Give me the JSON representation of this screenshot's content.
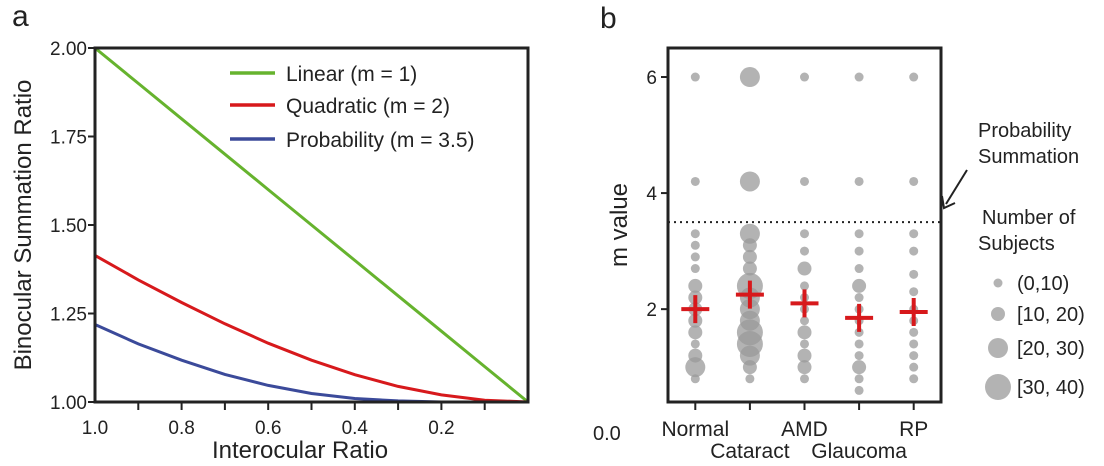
{
  "chart_data": [
    {
      "panel": "a",
      "type": "line",
      "xlabel": "Interocular Ratio",
      "ylabel": "Binocular Summation Ratio",
      "xlim": [
        1.0,
        0.0
      ],
      "ylim": [
        1.0,
        2.0
      ],
      "xticks": [
        1.0,
        0.8,
        0.6,
        0.4,
        0.2
      ],
      "xtick_labels": [
        "1.0",
        "0.8",
        "0.6",
        "0.4",
        "0.2"
      ],
      "yticks": [
        1.0,
        1.25,
        1.5,
        1.75,
        2.0
      ],
      "ytick_labels": [
        "1.00",
        "1.25",
        "1.50",
        "1.75",
        "2.00"
      ],
      "legend_position": "top-right",
      "series": [
        {
          "name": "Linear (m = 1)",
          "color": "#66b32e",
          "x": [
            1.0,
            0.9,
            0.8,
            0.7,
            0.6,
            0.5,
            0.4,
            0.3,
            0.2,
            0.1,
            0.0
          ],
          "y": [
            2.0,
            1.9,
            1.8,
            1.7,
            1.6,
            1.5,
            1.4,
            1.3,
            1.2,
            1.1,
            1.0
          ]
        },
        {
          "name": "Quadratic (m = 2)",
          "color": "#d7191c",
          "x": [
            1.0,
            0.9,
            0.8,
            0.7,
            0.6,
            0.5,
            0.4,
            0.3,
            0.2,
            0.1,
            0.0
          ],
          "y": [
            1.414,
            1.345,
            1.281,
            1.221,
            1.166,
            1.118,
            1.077,
            1.044,
            1.02,
            1.005,
            1.0
          ]
        },
        {
          "name": "Probability (m = 3.5)",
          "color": "#3b4a9a",
          "x": [
            1.0,
            0.9,
            0.8,
            0.7,
            0.6,
            0.5,
            0.4,
            0.3,
            0.2,
            0.1,
            0.0
          ],
          "y": [
            1.219,
            1.164,
            1.118,
            1.078,
            1.047,
            1.024,
            1.01,
            1.003,
            1.0,
            1.0,
            1.0
          ]
        }
      ]
    },
    {
      "panel": "b",
      "type": "scatter",
      "ylabel": "m value",
      "ylim": [
        0.4,
        6.5
      ],
      "yticks": [
        2,
        4,
        6
      ],
      "ytick_labels": [
        "2",
        "4",
        "6"
      ],
      "corner_label": "0.0",
      "categories": [
        "Normal",
        "Cataract",
        "AMD",
        "Glaucoma",
        "RP"
      ],
      "reference_line": {
        "y": 3.5,
        "style": "dotted",
        "label": "Probability Summation"
      },
      "mean_color": "#d7191c",
      "point_color": "#999999",
      "means": [
        2.0,
        2.25,
        2.1,
        1.85,
        1.95
      ],
      "size_legend": {
        "title": "Number of Subjects",
        "bins": [
          "(0,10)",
          "[10, 20)",
          "[20, 30)",
          "[30, 40)"
        ]
      },
      "points": [
        {
          "category": "Normal",
          "y": 6.0,
          "count_bin": 0
        },
        {
          "category": "Normal",
          "y": 4.2,
          "count_bin": 0
        },
        {
          "category": "Normal",
          "y": 3.3,
          "count_bin": 0
        },
        {
          "category": "Normal",
          "y": 3.1,
          "count_bin": 0
        },
        {
          "category": "Normal",
          "y": 2.9,
          "count_bin": 0
        },
        {
          "category": "Normal",
          "y": 2.7,
          "count_bin": 0
        },
        {
          "category": "Normal",
          "y": 2.4,
          "count_bin": 1
        },
        {
          "category": "Normal",
          "y": 2.2,
          "count_bin": 1
        },
        {
          "category": "Normal",
          "y": 2.0,
          "count_bin": 1
        },
        {
          "category": "Normal",
          "y": 1.8,
          "count_bin": 1
        },
        {
          "category": "Normal",
          "y": 1.6,
          "count_bin": 1
        },
        {
          "category": "Normal",
          "y": 1.4,
          "count_bin": 0
        },
        {
          "category": "Normal",
          "y": 1.2,
          "count_bin": 1
        },
        {
          "category": "Normal",
          "y": 1.0,
          "count_bin": 2
        },
        {
          "category": "Normal",
          "y": 0.8,
          "count_bin": 0
        },
        {
          "category": "Cataract",
          "y": 6.0,
          "count_bin": 2
        },
        {
          "category": "Cataract",
          "y": 4.2,
          "count_bin": 2
        },
        {
          "category": "Cataract",
          "y": 3.3,
          "count_bin": 2
        },
        {
          "category": "Cataract",
          "y": 3.1,
          "count_bin": 1
        },
        {
          "category": "Cataract",
          "y": 2.9,
          "count_bin": 1
        },
        {
          "category": "Cataract",
          "y": 2.7,
          "count_bin": 1
        },
        {
          "category": "Cataract",
          "y": 2.4,
          "count_bin": 3
        },
        {
          "category": "Cataract",
          "y": 2.2,
          "count_bin": 2
        },
        {
          "category": "Cataract",
          "y": 2.0,
          "count_bin": 2
        },
        {
          "category": "Cataract",
          "y": 1.8,
          "count_bin": 2
        },
        {
          "category": "Cataract",
          "y": 1.6,
          "count_bin": 3
        },
        {
          "category": "Cataract",
          "y": 1.4,
          "count_bin": 3
        },
        {
          "category": "Cataract",
          "y": 1.2,
          "count_bin": 2
        },
        {
          "category": "Cataract",
          "y": 1.0,
          "count_bin": 1
        },
        {
          "category": "Cataract",
          "y": 0.8,
          "count_bin": 0
        },
        {
          "category": "AMD",
          "y": 6.0,
          "count_bin": 0
        },
        {
          "category": "AMD",
          "y": 4.2,
          "count_bin": 0
        },
        {
          "category": "AMD",
          "y": 3.3,
          "count_bin": 0
        },
        {
          "category": "AMD",
          "y": 3.0,
          "count_bin": 0
        },
        {
          "category": "AMD",
          "y": 2.7,
          "count_bin": 1
        },
        {
          "category": "AMD",
          "y": 2.4,
          "count_bin": 0
        },
        {
          "category": "AMD",
          "y": 2.2,
          "count_bin": 0
        },
        {
          "category": "AMD",
          "y": 2.0,
          "count_bin": 0
        },
        {
          "category": "AMD",
          "y": 1.8,
          "count_bin": 0
        },
        {
          "category": "AMD",
          "y": 1.6,
          "count_bin": 1
        },
        {
          "category": "AMD",
          "y": 1.4,
          "count_bin": 0
        },
        {
          "category": "AMD",
          "y": 1.2,
          "count_bin": 1
        },
        {
          "category": "AMD",
          "y": 1.0,
          "count_bin": 1
        },
        {
          "category": "AMD",
          "y": 0.8,
          "count_bin": 0
        },
        {
          "category": "Glaucoma",
          "y": 6.0,
          "count_bin": 0
        },
        {
          "category": "Glaucoma",
          "y": 4.2,
          "count_bin": 0
        },
        {
          "category": "Glaucoma",
          "y": 3.3,
          "count_bin": 0
        },
        {
          "category": "Glaucoma",
          "y": 3.0,
          "count_bin": 0
        },
        {
          "category": "Glaucoma",
          "y": 2.7,
          "count_bin": 0
        },
        {
          "category": "Glaucoma",
          "y": 2.4,
          "count_bin": 1
        },
        {
          "category": "Glaucoma",
          "y": 2.2,
          "count_bin": 0
        },
        {
          "category": "Glaucoma",
          "y": 2.0,
          "count_bin": 0
        },
        {
          "category": "Glaucoma",
          "y": 1.8,
          "count_bin": 0
        },
        {
          "category": "Glaucoma",
          "y": 1.6,
          "count_bin": 0
        },
        {
          "category": "Glaucoma",
          "y": 1.4,
          "count_bin": 0
        },
        {
          "category": "Glaucoma",
          "y": 1.2,
          "count_bin": 0
        },
        {
          "category": "Glaucoma",
          "y": 1.0,
          "count_bin": 1
        },
        {
          "category": "Glaucoma",
          "y": 0.8,
          "count_bin": 0
        },
        {
          "category": "Glaucoma",
          "y": 0.6,
          "count_bin": 0
        },
        {
          "category": "RP",
          "y": 6.0,
          "count_bin": 0
        },
        {
          "category": "RP",
          "y": 4.2,
          "count_bin": 0
        },
        {
          "category": "RP",
          "y": 3.3,
          "count_bin": 0
        },
        {
          "category": "RP",
          "y": 3.0,
          "count_bin": 0
        },
        {
          "category": "RP",
          "y": 2.6,
          "count_bin": 0
        },
        {
          "category": "RP",
          "y": 2.3,
          "count_bin": 0
        },
        {
          "category": "RP",
          "y": 2.0,
          "count_bin": 0
        },
        {
          "category": "RP",
          "y": 1.8,
          "count_bin": 0
        },
        {
          "category": "RP",
          "y": 1.6,
          "count_bin": 0
        },
        {
          "category": "RP",
          "y": 1.4,
          "count_bin": 0
        },
        {
          "category": "RP",
          "y": 1.2,
          "count_bin": 0
        },
        {
          "category": "RP",
          "y": 1.0,
          "count_bin": 0
        },
        {
          "category": "RP",
          "y": 0.8,
          "count_bin": 0
        }
      ]
    }
  ],
  "labels": {
    "panel_a": "a",
    "panel_b": "b"
  }
}
